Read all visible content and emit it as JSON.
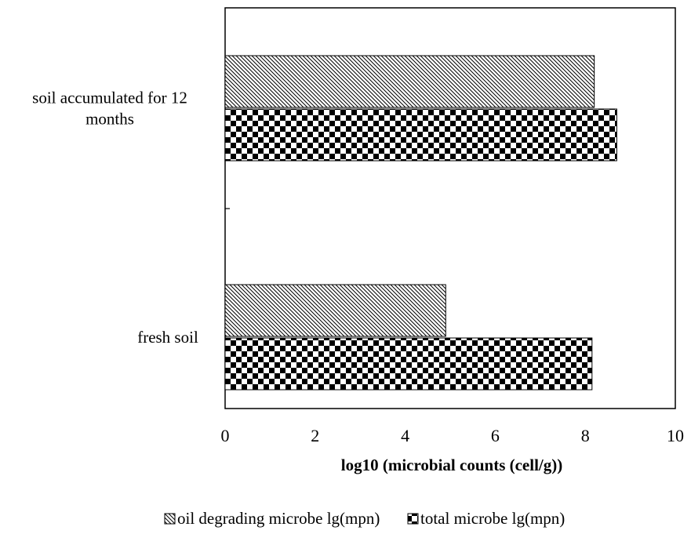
{
  "chart_data": {
    "type": "bar",
    "orientation": "horizontal",
    "categories": [
      "fresh soil",
      "soil accumulated for 12 months"
    ],
    "category_label_lines": [
      [
        "fresh soil"
      ],
      [
        "soil accumulated for 12",
        "months"
      ]
    ],
    "series": [
      {
        "name": "oil degrading microbe lg(mpn)",
        "values": [
          4.9,
          8.2
        ],
        "pattern": "diagonal-hatch"
      },
      {
        "name": "total microbe lg(mpn)",
        "values": [
          8.15,
          8.7
        ],
        "pattern": "checkerboard"
      }
    ],
    "xlabel": "log10 (microbial counts (cell/g))",
    "ylabel": "",
    "xlim": [
      0,
      10
    ],
    "xticks": [
      0,
      2,
      4,
      6,
      8,
      10
    ],
    "grid": false,
    "legend_position": "bottom",
    "colors": {
      "bar_fill": "#ffffff",
      "pattern": "#000000",
      "axis": "#000000"
    }
  }
}
